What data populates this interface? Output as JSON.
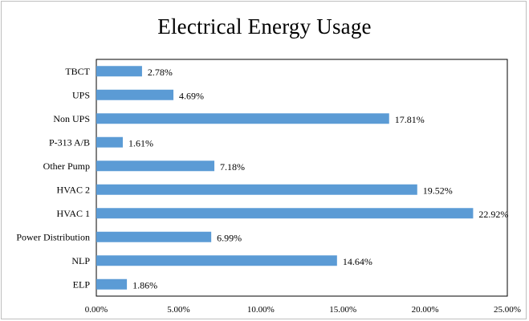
{
  "chart_data": {
    "type": "bar",
    "orientation": "horizontal",
    "title": "Electrical Energy Usage",
    "categories": [
      "TBCT",
      "UPS",
      "Non UPS",
      "P-313 A/B",
      "Other Pump",
      "HVAC 2",
      "HVAC 1",
      "Power Distribution",
      "NLP",
      "ELP"
    ],
    "values": [
      2.78,
      4.69,
      17.81,
      1.61,
      7.18,
      19.52,
      22.92,
      6.99,
      14.64,
      1.86
    ],
    "value_labels": [
      "2.78%",
      "4.69%",
      "17.81%",
      "1.61%",
      "7.18%",
      "19.52%",
      "22.92%",
      "6.99%",
      "14.64%",
      "1.86%"
    ],
    "xlim": [
      0,
      25
    ],
    "x_ticks": [
      0,
      5,
      10,
      15,
      20,
      25
    ],
    "x_tick_labels": [
      "0.00%",
      "5.00%",
      "10.00%",
      "15.00%",
      "20.00%",
      "25.00%"
    ],
    "bar_color": "#5b9bd5",
    "grid": false,
    "legend": "none"
  }
}
